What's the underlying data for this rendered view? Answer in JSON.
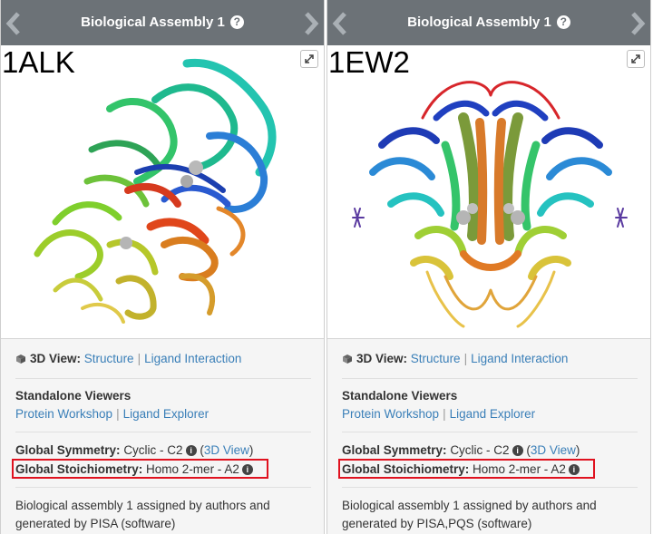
{
  "panels": [
    {
      "header_title": "Biological Assembly 1",
      "pdb_id": "1ALK",
      "view_3d_label": "3D View:",
      "structure_link": "Structure",
      "ligand_interaction_link": "Ligand Interaction",
      "standalone_title": "Standalone Viewers",
      "protein_workshop_link": "Protein Workshop",
      "ligand_explorer_link": "Ligand Explorer",
      "symmetry_label": "Global Symmetry:",
      "symmetry_value": "Cyclic - C2",
      "symmetry_3d_link": "3D View",
      "stoichiometry_label": "Global Stoichiometry:",
      "stoichiometry_value": "Homo 2-mer - A2",
      "description_line1": "Biological assembly 1 assigned by authors and",
      "description_line2": "generated by PISA (software)"
    },
    {
      "header_title": "Biological Assembly 1",
      "pdb_id": "1EW2",
      "view_3d_label": "3D View:",
      "structure_link": "Structure",
      "ligand_interaction_link": "Ligand Interaction",
      "standalone_title": "Standalone Viewers",
      "protein_workshop_link": "Protein Workshop",
      "ligand_explorer_link": "Ligand Explorer",
      "symmetry_label": "Global Symmetry:",
      "symmetry_value": "Cyclic - C2",
      "symmetry_3d_link": "3D View",
      "stoichiometry_label": "Global Stoichiometry:",
      "stoichiometry_value": "Homo 2-mer - A2",
      "description_line1": "Biological assembly 1 assigned by authors and",
      "description_line2": "generated by PISA,PQS (software)"
    }
  ],
  "icons": {
    "help": "question-circle-icon",
    "info": "info-circle-icon",
    "prev": "chevron-left-icon",
    "next": "chevron-right-icon",
    "expand": "expand-icon",
    "cube": "cube-icon"
  },
  "colors": {
    "header_bg": "#6c7277",
    "link": "#3a7fb8",
    "highlight_border": "#e0121f",
    "info_bg": "#f5f5f5"
  }
}
